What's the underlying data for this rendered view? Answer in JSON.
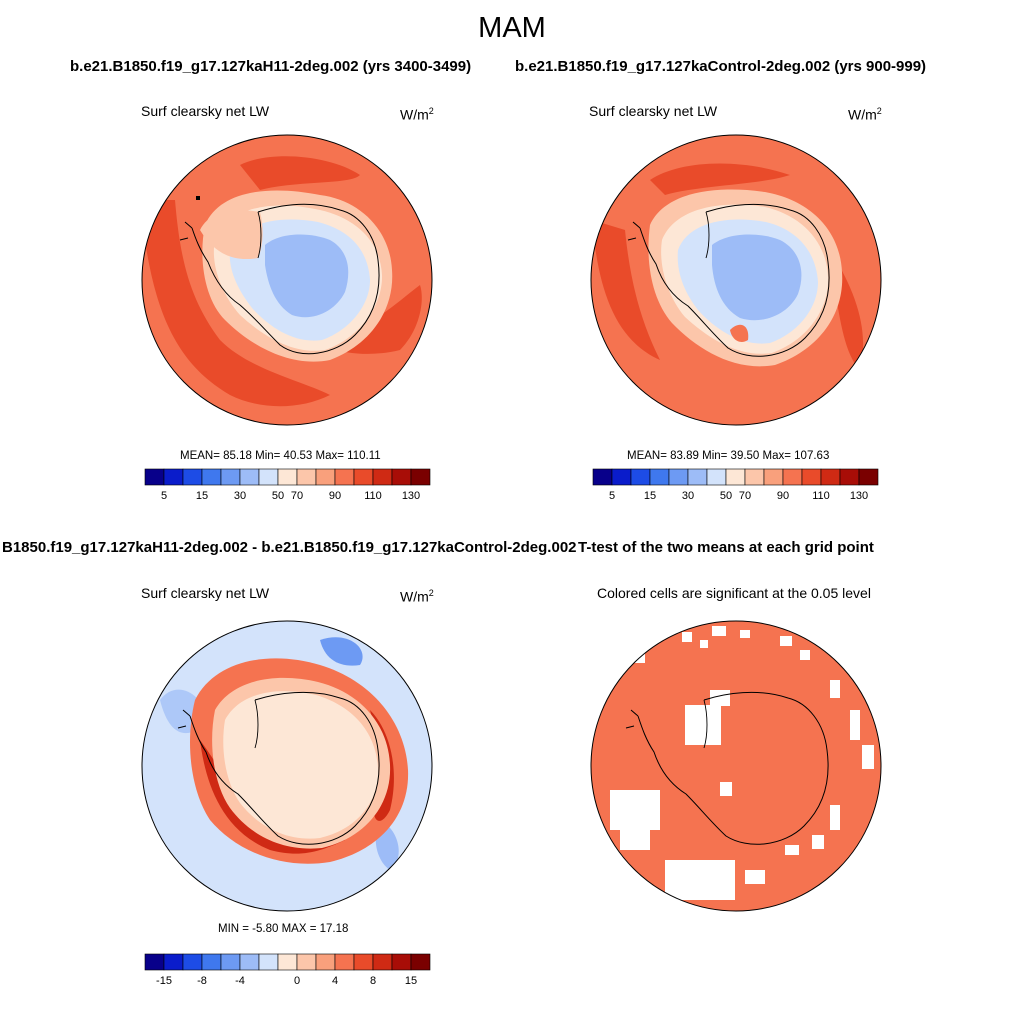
{
  "title": "MAM",
  "case_titles": {
    "left": "b.e21.B1850.f19_g17.127kaH11-2deg.002 (yrs 3400-3499)",
    "right": "b.e21.B1850.f19_g17.127kaControl-2deg.002 (yrs 900-999)",
    "diff": "B1850.f19_g17.127kaH11-2deg.002 - b.e21.B1850.f19_g17.127kaControl-2deg.002",
    "ttest": "T-test of the two means at each grid point"
  },
  "panels": {
    "top_left": {
      "variable": "Surf clearsky net LW",
      "units_base": "W/m",
      "units_exp": "2",
      "stats": "MEAN=  85.18  Min=  40.53  Max= 110.11"
    },
    "top_right": {
      "variable": "Surf clearsky net LW",
      "units_base": "W/m",
      "units_exp": "2",
      "stats": "MEAN=  83.89  Min=  39.50  Max= 107.63"
    },
    "bottom_left": {
      "variable": "Surf clearsky net LW",
      "units_base": "W/m",
      "units_exp": "2",
      "stats": "MIN =  -5.80 MAX =  17.18"
    },
    "bottom_right": {
      "subtitle": "Colored cells are significant at the 0.05 level"
    }
  },
  "colorbars": {
    "absolute": {
      "colors": [
        "#08008a",
        "#0a1ccb",
        "#1d4ce6",
        "#3f78ee",
        "#6d9af3",
        "#9dbcf7",
        "#d3e3fb",
        "#fde7d6",
        "#fcc6aa",
        "#f9a07c",
        "#f57350",
        "#e94b2a",
        "#cf2a14",
        "#a80d07",
        "#7a0000"
      ],
      "tick_labels": [
        "5",
        "15",
        "30",
        "50",
        "70",
        "90",
        "110",
        "130"
      ]
    },
    "difference": {
      "colors": [
        "#08008a",
        "#0a1ccb",
        "#1d4ce6",
        "#3f78ee",
        "#6d9af3",
        "#9dbcf7",
        "#d3e3fb",
        "#fde7d6",
        "#fcc6aa",
        "#f9a07c",
        "#f57350",
        "#e94b2a",
        "#cf2a14",
        "#a80d07",
        "#7a0000"
      ],
      "tick_labels": [
        "-15",
        "-8",
        "-4",
        "0",
        "4",
        "8",
        "15"
      ]
    }
  },
  "colors": {
    "ocean_warm": "#f57350",
    "ocean_hot": "#e94b2a",
    "ocean_mid": "#f9a07c",
    "coast_band": "#fcc6aa",
    "ice_pale": "#d3e3fb",
    "ice_blue": "#9dbcf7",
    "diff_ice": "#fde7d6",
    "diff_ring": "#e94b2a",
    "diff_ring_dark": "#cf2a14",
    "diff_ocean": "#d3e3fb",
    "significant": "#f57350"
  }
}
